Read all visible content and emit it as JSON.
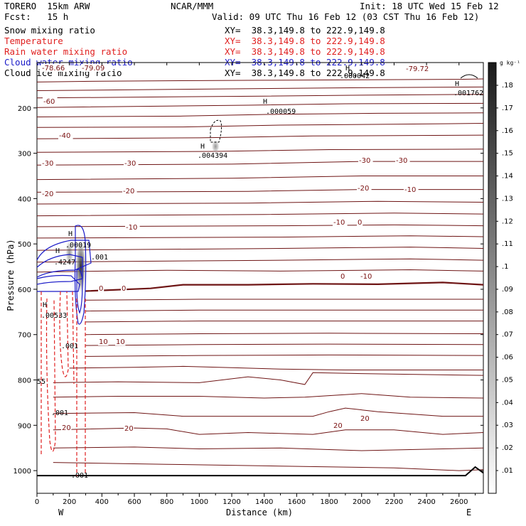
{
  "header": {
    "model": "TORERO  15km ARW",
    "org": "NCAR/MMM",
    "init": "Init: 18 UTC Wed 15 Feb 12",
    "fcst": "Fcst:   15 h",
    "valid": "Valid: 09 UTC Thu 16 Feb 12 (03 CST Thu 16 Feb 12)"
  },
  "fields": [
    {
      "label": "Snow mixing ratio",
      "color": "#000000",
      "xy": "XY=  38.3,149.8 to 222.9,149.8"
    },
    {
      "label": "Temperature",
      "color": "#e02020",
      "xy": "XY=  38.3,149.8 to 222.9,149.8"
    },
    {
      "label": "Rain water mixing ratio",
      "color": "#e02020",
      "xy": "XY=  38.3,149.8 to 222.9,149.8"
    },
    {
      "label": "Cloud water mixing ratio",
      "color": "#1b1bc8",
      "xy": "XY=  38.3,149.8 to 222.9,149.8"
    },
    {
      "label": "Cloud ice mixing ratio",
      "color": "#000000",
      "xy": "XY=  38.3,149.8 to 222.9,149.8"
    }
  ],
  "chart_data": {
    "type": "contour_cross_section",
    "xlabel": "Distance (km)",
    "ylabel": "Pressure (hPa)",
    "x_ticks": [
      0,
      200,
      400,
      600,
      800,
      1000,
      1200,
      1400,
      1600,
      1800,
      2000,
      2200,
      2400,
      2600
    ],
    "y_ticks": [
      200,
      300,
      400,
      500,
      600,
      700,
      800,
      900,
      1000
    ],
    "xlim": [
      0,
      2750
    ],
    "ylim": [
      1050,
      100
    ],
    "end_labels": {
      "left": "W",
      "right": "E"
    },
    "colorbar": {
      "unit": "g kg⁻¹",
      "ticks": [
        ".18",
        ".17",
        ".16",
        ".15",
        ".14",
        ".13",
        ".12",
        ".11",
        ".1",
        ".09",
        ".08",
        ".07",
        ".06",
        ".05",
        ".04",
        ".03",
        ".02",
        ".01"
      ],
      "max": 0.19,
      "min": 0.0
    },
    "temperature_labels": [
      "-60",
      "-40",
      "-30",
      "-30",
      "-30",
      "-30",
      "-20",
      "-20",
      "-20",
      "-10",
      "-10",
      "-10",
      "0",
      "0",
      "0",
      "0",
      "-10",
      "-10",
      "10",
      "10",
      "20",
      "20",
      "20",
      "-79.09",
      "-79.72",
      "-78.66"
    ],
    "highs": [
      {
        "label": "H",
        "value": ".000059"
      },
      {
        "label": "H",
        "value": ".004394"
      },
      {
        "label": "H",
        "value": ".001762"
      },
      {
        "label": "H",
        "value": ".000042"
      },
      {
        "label": "H",
        "value": ".00019"
      },
      {
        "label": "H",
        "value": ".4247"
      },
      {
        "label": "H",
        "value": ".00533"
      }
    ],
    "other_labels": [
      ".001",
      ".001",
      ".001",
      ".001",
      "55"
    ]
  }
}
